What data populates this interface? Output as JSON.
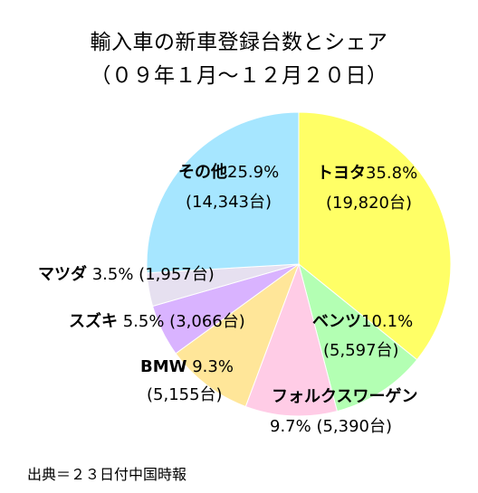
{
  "chart_data": {
    "type": "pie",
    "title": "輸入車の新車登録台数とシェア",
    "subtitle": "（０９年１月～１２月２０日）",
    "slices": [
      {
        "name": "トヨタ",
        "percent_label": "35.8%",
        "units_label": "(19,820台)",
        "value": 19820,
        "color": "#FFFF66"
      },
      {
        "name": "ベンツ",
        "percent_label": "10.1%",
        "units_label": "(5,597台)",
        "value": 5597,
        "color": "#B3FFB3"
      },
      {
        "name": "フォルクスワーゲン",
        "percent_label": "9.7%",
        "units_label": "(5,390台)",
        "value": 5390,
        "color": "#FFCCE6"
      },
      {
        "name": "BMW",
        "percent_label": "9.3%",
        "units_label": "(5,155台)",
        "value": 5155,
        "color": "#FFE699"
      },
      {
        "name": "スズキ",
        "percent_label": "5.5%",
        "units_label": "(3,066台)",
        "value": 3066,
        "color": "#D9B3FF"
      },
      {
        "name": "マツダ",
        "percent_label": "3.5%",
        "units_label": "(1,957台)",
        "value": 1957,
        "color": "#E6E0F0"
      },
      {
        "name": "その他",
        "percent_label": "25.9%",
        "units_label": "(14,343台)",
        "value": 14343,
        "color": "#A6E6FF"
      }
    ],
    "start_angle_deg": 0,
    "direction": "clockwise"
  },
  "source": "出典＝２３日付中国時報"
}
